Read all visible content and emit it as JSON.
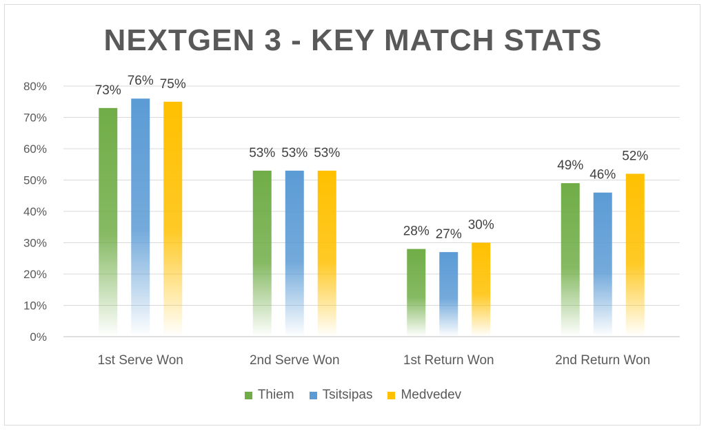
{
  "chart_data": {
    "type": "bar",
    "title": "NEXTGEN 3 - KEY MATCH STATS",
    "categories": [
      "1st Serve Won",
      "2nd Serve Won",
      "1st Return Won",
      "2nd Return Won"
    ],
    "series": [
      {
        "name": "Thiem",
        "values": [
          73,
          53,
          28,
          49
        ],
        "color": "#70ad47"
      },
      {
        "name": "Tsitsipas",
        "values": [
          76,
          53,
          27,
          46
        ],
        "color": "#5b9bd5"
      },
      {
        "name": "Medvedev",
        "values": [
          75,
          53,
          30,
          52
        ],
        "color": "#ffc000"
      }
    ],
    "data_labels": [
      [
        "73%",
        "53%",
        "28%",
        "49%"
      ],
      [
        "76%",
        "53%",
        "27%",
        "46%"
      ],
      [
        "75%",
        "53%",
        "30%",
        "52%"
      ]
    ],
    "y_ticks": [
      "0%",
      "10%",
      "20%",
      "30%",
      "40%",
      "50%",
      "60%",
      "70%",
      "80%"
    ],
    "ylim": [
      0,
      80
    ],
    "grid": true,
    "legend_position": "bottom"
  }
}
